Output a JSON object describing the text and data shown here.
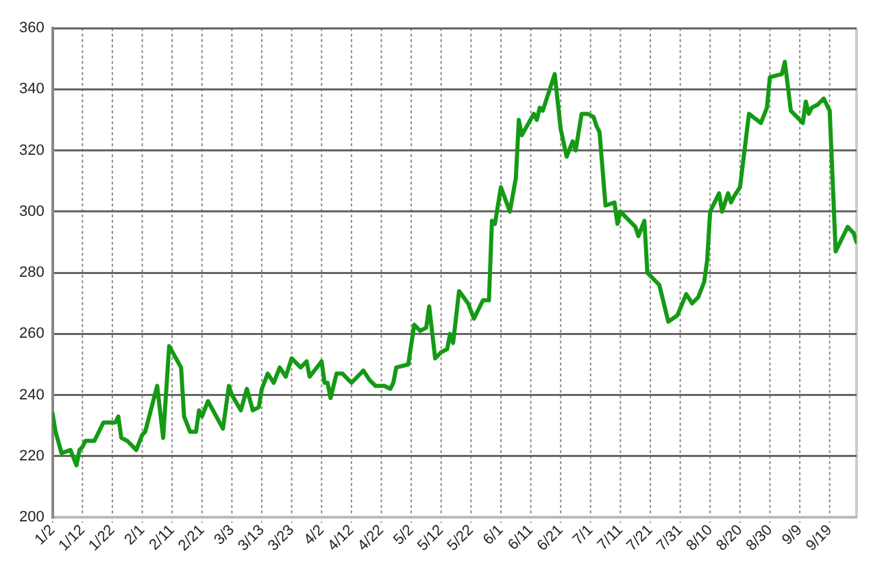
{
  "chart_data": {
    "type": "line",
    "x": [
      "--01-02",
      "--01-03",
      "--01-05",
      "--01-08",
      "--01-10",
      "--01-11",
      "--01-12",
      "--01-13",
      "--01-16",
      "--01-19",
      "--01-23",
      "--01-24",
      "--01-25",
      "--01-27",
      "--01-30",
      "--02-01",
      "--02-02",
      "--02-06",
      "--02-08",
      "--02-10",
      "--02-14",
      "--02-15",
      "--02-17",
      "--02-19",
      "--02-20",
      "--02-21",
      "--02-23",
      "--02-28",
      "--03-02",
      "--03-03",
      "--03-06",
      "--03-08",
      "--03-10",
      "--03-12",
      "--03-13",
      "--03-15",
      "--03-17",
      "--03-19",
      "--03-21",
      "--03-23",
      "--03-26",
      "--03-28",
      "--03-29",
      "--04-02",
      "--04-03",
      "--04-04",
      "--04-05",
      "--04-07",
      "--04-09",
      "--04-11",
      "--04-12",
      "--04-16",
      "--04-18",
      "--04-20",
      "--04-23",
      "--04-25",
      "--04-26",
      "--04-27",
      "--05-01",
      "--05-03",
      "--05-05",
      "--05-07",
      "--05-08",
      "--05-10",
      "--05-12",
      "--05-14",
      "--05-15",
      "--05-16",
      "--05-18",
      "--05-21",
      "--05-23",
      "--05-26",
      "--05-28",
      "--05-29",
      "--05-30",
      "--06-01",
      "--06-04",
      "--06-06",
      "--06-07",
      "--06-08",
      "--06-12",
      "--06-13",
      "--06-14",
      "--06-15",
      "--06-19",
      "--06-21",
      "--06-23",
      "--06-25",
      "--06-26",
      "--06-28",
      "--06-30",
      "--07-02",
      "--07-03",
      "--07-04",
      "--07-06",
      "--07-09",
      "--07-10",
      "--07-11",
      "--07-13",
      "--07-16",
      "--07-17",
      "--07-19",
      "--07-20",
      "--07-24",
      "--07-27",
      "--07-30",
      "--08-02",
      "--08-04",
      "--08-06",
      "--08-08",
      "--08-09",
      "--08-10",
      "--08-13",
      "--08-14",
      "--08-16",
      "--08-17",
      "--08-18",
      "--08-20",
      "--08-23",
      "--08-27",
      "--08-29",
      "--08-30",
      "--09-03",
      "--09-04",
      "--09-06",
      "--09-10",
      "--09-11",
      "--09-12",
      "--09-13",
      "--09-15",
      "--09-17",
      "--09-19",
      "--09-21",
      "--09-25",
      "--09-27",
      "--09-28"
    ],
    "series": [
      {
        "color": "#149a14",
        "values": [
          234,
          228,
          221,
          222,
          217,
          222,
          223,
          225,
          225,
          231,
          231,
          233,
          226,
          225,
          222,
          227,
          228,
          243,
          226,
          256,
          249,
          233,
          228,
          228,
          235,
          233,
          238,
          229,
          243,
          240,
          235,
          242,
          235,
          236,
          242,
          247,
          244,
          249,
          246,
          252,
          249,
          251,
          246,
          251,
          244,
          244,
          239,
          247,
          247,
          245,
          244,
          248,
          245,
          243,
          243,
          242,
          244,
          249,
          250,
          263,
          261,
          262,
          269,
          252,
          254,
          255,
          260,
          257,
          274,
          270,
          265,
          271,
          271,
          297,
          296,
          308,
          300,
          311,
          330,
          325,
          332,
          330,
          334,
          333,
          345,
          327,
          318,
          323,
          320,
          332,
          332,
          331,
          328,
          326,
          302,
          303,
          296,
          300,
          298,
          295,
          292,
          297,
          280,
          276,
          264,
          266,
          273,
          270,
          272,
          277,
          284,
          300,
          306,
          300,
          306,
          303,
          305,
          308,
          332,
          329,
          334,
          344,
          345,
          349,
          333,
          329,
          336,
          332,
          334,
          335,
          337,
          333,
          287,
          295,
          293,
          290
        ]
      }
    ],
    "xlim": [
      "--01-02",
      "--09-28"
    ],
    "xticks": [
      {
        "value": "--01-02",
        "label": "1/2"
      },
      {
        "value": "--01-12",
        "label": "1/12"
      },
      {
        "value": "--01-22",
        "label": "1/22"
      },
      {
        "value": "--02-01",
        "label": "2/1"
      },
      {
        "value": "--02-11",
        "label": "2/11"
      },
      {
        "value": "--02-21",
        "label": "2/21"
      },
      {
        "value": "--03-03",
        "label": "3/3"
      },
      {
        "value": "--03-13",
        "label": "3/13"
      },
      {
        "value": "--03-23",
        "label": "3/23"
      },
      {
        "value": "--04-02",
        "label": "4/2"
      },
      {
        "value": "--04-12",
        "label": "4/12"
      },
      {
        "value": "--04-22",
        "label": "4/22"
      },
      {
        "value": "--05-02",
        "label": "5/2"
      },
      {
        "value": "--05-12",
        "label": "5/12"
      },
      {
        "value": "--05-22",
        "label": "5/22"
      },
      {
        "value": "--06-01",
        "label": "6/1"
      },
      {
        "value": "--06-11",
        "label": "6/11"
      },
      {
        "value": "--06-21",
        "label": "6/21"
      },
      {
        "value": "--07-01",
        "label": "7/1"
      },
      {
        "value": "--07-11",
        "label": "7/11"
      },
      {
        "value": "--07-21",
        "label": "7/21"
      },
      {
        "value": "--07-31",
        "label": "7/31"
      },
      {
        "value": "--08-10",
        "label": "8/10"
      },
      {
        "value": "--08-20",
        "label": "8/20"
      },
      {
        "value": "--08-30",
        "label": "8/30"
      },
      {
        "value": "--09-09",
        "label": "9/9"
      },
      {
        "value": "--09-19",
        "label": "9/19"
      }
    ],
    "ylim": [
      200,
      360
    ],
    "yticks": [
      200,
      220,
      240,
      260,
      280,
      300,
      320,
      340,
      360
    ],
    "grid": true,
    "legend": false,
    "marker": "none",
    "line_style": "solid"
  }
}
